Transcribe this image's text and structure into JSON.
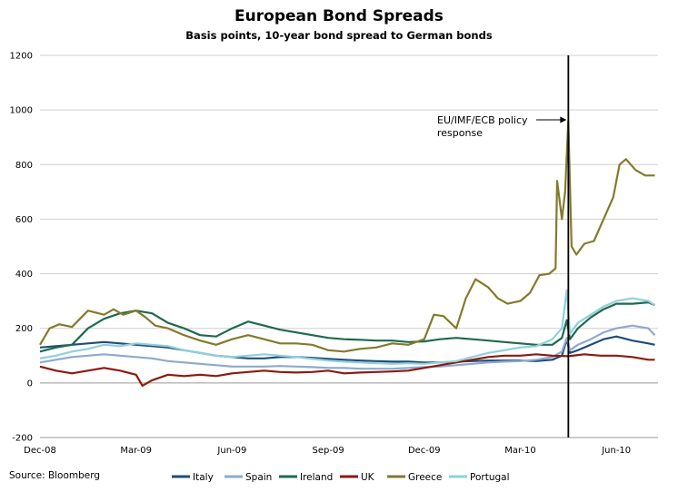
{
  "chart_data": {
    "type": "line",
    "title": "European Bond Spreads",
    "subtitle": "Basis points, 10-year bond spread to German bonds",
    "xlabel": "",
    "ylabel": "",
    "ylim": [
      -200,
      1200
    ],
    "y_ticks": [
      "-200",
      "0",
      "200",
      "400",
      "600",
      "800",
      "1000",
      "1200"
    ],
    "xlim": [
      0,
      19.3
    ],
    "x_ticks": [
      {
        "x": 0,
        "label": "Dec-08"
      },
      {
        "x": 3,
        "label": "Mar-09"
      },
      {
        "x": 6,
        "label": "Jun-09"
      },
      {
        "x": 9,
        "label": "Sep-09"
      },
      {
        "x": 12,
        "label": "Dec-09"
      },
      {
        "x": 15,
        "label": "Mar-10"
      },
      {
        "x": 18,
        "label": "Jun-10"
      }
    ],
    "grid": "horizontal",
    "legend": "bottom",
    "source": "Source: Bloomberg",
    "event_line": {
      "x": 16.5,
      "label_line1": "EU/IMF/ECB policy",
      "label_line2": "response"
    },
    "series": [
      {
        "name": "Italy",
        "color": "#1f4e79",
        "x": [
          0,
          0.5,
          1,
          1.5,
          2,
          2.5,
          3,
          3.5,
          4,
          4.5,
          5,
          5.5,
          6,
          6.5,
          7,
          7.5,
          8,
          8.5,
          9,
          9.5,
          10,
          10.5,
          11,
          11.5,
          12,
          12.5,
          13,
          13.5,
          14,
          14.5,
          15,
          15.5,
          16,
          16.3,
          16.45,
          16.55,
          16.8,
          17.2,
          17.6,
          18,
          18.5,
          19,
          19.2
        ],
        "y": [
          130,
          135,
          140,
          145,
          150,
          145,
          140,
          135,
          130,
          120,
          110,
          100,
          95,
          90,
          90,
          95,
          95,
          92,
          88,
          85,
          82,
          80,
          78,
          78,
          75,
          75,
          78,
          80,
          82,
          82,
          82,
          80,
          85,
          100,
          160,
          110,
          120,
          140,
          160,
          170,
          155,
          145,
          140
        ]
      },
      {
        "name": "Spain",
        "color": "#8ea9cc",
        "x": [
          0,
          0.5,
          1,
          1.5,
          2,
          2.5,
          3,
          3.5,
          4,
          4.5,
          5,
          5.5,
          6,
          6.5,
          7,
          7.5,
          8,
          8.5,
          9,
          9.5,
          10,
          10.5,
          11,
          11.5,
          12,
          12.5,
          13,
          13.5,
          14,
          14.5,
          15,
          15.5,
          16,
          16.3,
          16.45,
          16.55,
          16.8,
          17.2,
          17.6,
          18,
          18.5,
          19,
          19.2
        ],
        "y": [
          75,
          85,
          95,
          100,
          105,
          100,
          95,
          90,
          80,
          75,
          70,
          65,
          60,
          60,
          60,
          62,
          60,
          58,
          55,
          55,
          52,
          52,
          52,
          55,
          58,
          60,
          65,
          70,
          75,
          78,
          80,
          85,
          95,
          115,
          165,
          120,
          140,
          160,
          185,
          200,
          210,
          200,
          175
        ]
      },
      {
        "name": "Ireland",
        "color": "#1e6a4f",
        "x": [
          0,
          0.5,
          1,
          1.5,
          2,
          2.5,
          3,
          3.5,
          4,
          4.5,
          5,
          5.5,
          6,
          6.5,
          7,
          7.5,
          8,
          8.5,
          9,
          9.5,
          10,
          10.5,
          11,
          11.5,
          12,
          12.5,
          13,
          13.5,
          14,
          14.5,
          15,
          15.5,
          16,
          16.3,
          16.45,
          16.55,
          16.8,
          17.2,
          17.6,
          18,
          18.5,
          19,
          19.2
        ],
        "y": [
          115,
          130,
          140,
          200,
          235,
          255,
          265,
          255,
          220,
          200,
          175,
          170,
          200,
          225,
          210,
          195,
          185,
          175,
          165,
          160,
          158,
          155,
          155,
          150,
          152,
          160,
          165,
          160,
          155,
          150,
          145,
          140,
          140,
          165,
          230,
          160,
          200,
          240,
          270,
          290,
          290,
          295,
          285
        ]
      },
      {
        "name": "UK",
        "color": "#8b1a10",
        "x": [
          0,
          0.5,
          1,
          1.5,
          2,
          2.5,
          3,
          3.2,
          3.5,
          4,
          4.5,
          5,
          5.5,
          6,
          6.5,
          7,
          7.5,
          8,
          8.5,
          9,
          9.5,
          10,
          10.5,
          11,
          11.5,
          12,
          12.5,
          13,
          13.5,
          14,
          14.5,
          15,
          15.5,
          16,
          16.5,
          17,
          17.5,
          18,
          18.5,
          19,
          19.2
        ],
        "y": [
          60,
          45,
          35,
          45,
          55,
          45,
          30,
          -10,
          10,
          30,
          25,
          30,
          25,
          35,
          40,
          45,
          40,
          38,
          40,
          45,
          35,
          38,
          40,
          42,
          45,
          55,
          65,
          75,
          85,
          95,
          100,
          100,
          105,
          100,
          98,
          105,
          100,
          100,
          95,
          85,
          85
        ]
      },
      {
        "name": "Greece",
        "color": "#847a2c",
        "x": [
          0,
          0.3,
          0.6,
          1,
          1.5,
          2,
          2.3,
          2.6,
          3,
          3.3,
          3.6,
          4,
          4.5,
          5,
          5.5,
          6,
          6.5,
          7,
          7.5,
          8,
          8.5,
          9,
          9.5,
          10,
          10.5,
          11,
          11.5,
          12,
          12.3,
          12.6,
          13,
          13.3,
          13.6,
          14,
          14.3,
          14.6,
          15,
          15.3,
          15.6,
          15.9,
          16.1,
          16.15,
          16.3,
          16.4,
          16.5,
          16.6,
          16.75,
          17,
          17.3,
          17.6,
          17.9,
          18.1,
          18.3,
          18.6,
          18.9,
          19.2
        ],
        "y": [
          140,
          200,
          215,
          205,
          265,
          250,
          270,
          250,
          265,
          240,
          210,
          200,
          175,
          155,
          140,
          160,
          175,
          160,
          145,
          145,
          140,
          120,
          115,
          125,
          130,
          145,
          140,
          160,
          250,
          245,
          200,
          310,
          380,
          350,
          310,
          290,
          300,
          330,
          395,
          400,
          420,
          740,
          600,
          700,
          960,
          500,
          470,
          510,
          520,
          600,
          680,
          800,
          820,
          780,
          760,
          760
        ]
      },
      {
        "name": "Portugal",
        "color": "#8fd0dc",
        "x": [
          0,
          0.5,
          1,
          1.5,
          2,
          2.5,
          3,
          3.5,
          4,
          4.5,
          5,
          5.5,
          6,
          6.5,
          7,
          7.5,
          8,
          8.5,
          9,
          9.5,
          10,
          10.5,
          11,
          11.5,
          12,
          12.5,
          13,
          13.5,
          14,
          14.5,
          15,
          15.5,
          16,
          16.3,
          16.45,
          16.55,
          16.8,
          17.2,
          17.6,
          18,
          18.5,
          19,
          19.2
        ],
        "y": [
          90,
          100,
          115,
          125,
          140,
          135,
          145,
          140,
          135,
          120,
          110,
          100,
          95,
          100,
          105,
          100,
          95,
          88,
          82,
          78,
          75,
          72,
          70,
          72,
          70,
          75,
          80,
          95,
          110,
          120,
          130,
          135,
          160,
          200,
          340,
          180,
          220,
          250,
          280,
          300,
          310,
          300,
          285
        ]
      }
    ]
  }
}
